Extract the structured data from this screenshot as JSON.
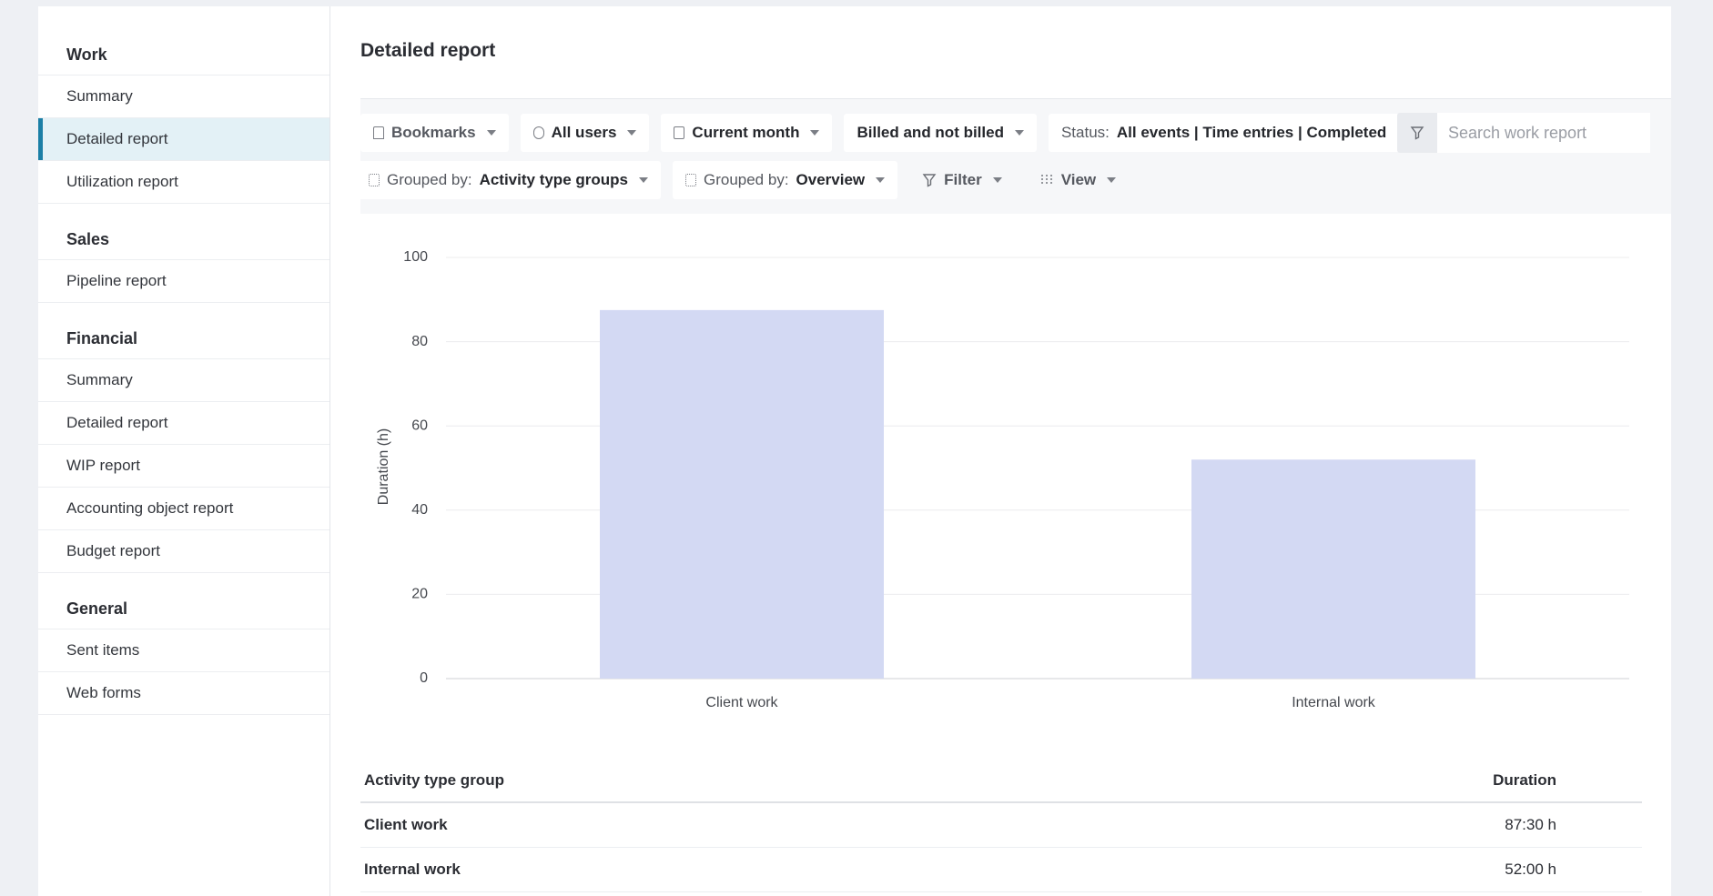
{
  "sidebar": {
    "sections": [
      {
        "title": "Work",
        "items": [
          "Summary",
          "Detailed report",
          "Utilization report"
        ]
      },
      {
        "title": "Sales",
        "items": [
          "Pipeline report"
        ]
      },
      {
        "title": "Financial",
        "items": [
          "Summary",
          "Detailed report",
          "WIP report",
          "Accounting object report",
          "Budget report"
        ]
      },
      {
        "title": "General",
        "items": [
          "Sent items",
          "Web forms"
        ]
      }
    ]
  },
  "header": {
    "title": "Detailed report"
  },
  "filters": {
    "bookmarks": "Bookmarks",
    "users": "All users",
    "period": "Current month",
    "billing": "Billed and not billed",
    "status_label": "Status:",
    "status_value": "All events | Time entries | Completed",
    "search_placeholder": "Search work report",
    "group1_label": "Grouped by:",
    "group1_value": "Activity type groups",
    "group2_label": "Grouped by:",
    "group2_value": "Overview",
    "filter": "Filter",
    "view": "View"
  },
  "chart_data": {
    "type": "bar",
    "y_label": "Duration (h)",
    "categories": [
      "Client work",
      "Internal work"
    ],
    "values": [
      87.5,
      52
    ],
    "color": "#d3d9f3",
    "ylim": [
      0,
      100
    ],
    "yticks": [
      0,
      20,
      40,
      60,
      80,
      100
    ],
    "grid": true
  },
  "table": {
    "columns": [
      "Activity type group",
      "Duration"
    ],
    "rows": [
      [
        "Client work",
        "87:30 h"
      ],
      [
        "Internal work",
        "52:00 h"
      ]
    ]
  }
}
